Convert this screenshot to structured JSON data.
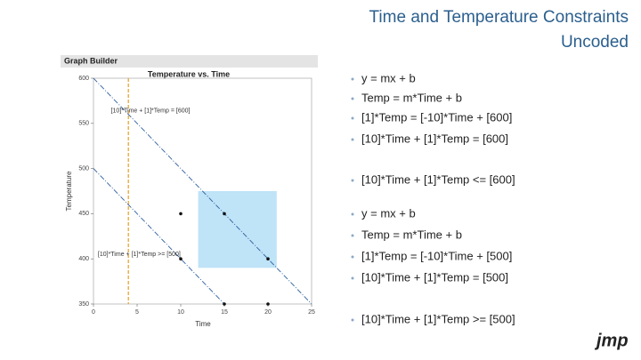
{
  "slide": {
    "title_lines": [
      "Time and Temperature Constraints",
      "Uncoded"
    ],
    "bullets": [
      "y = mx + b",
      "Temp = m*Time + b",
      "[1]*Temp = [-10]*Time + [600]",
      "[10]*Time + [1]*Temp = [600]",
      "[10]*Time + [1]*Temp <= [600]",
      "y = mx + b",
      "Temp = m*Time + b",
      "[1]*Temp = [-10]*Time + [500]",
      "[10]*Time + [1]*Temp = [500]",
      "[10]*Time + [1]*Temp >= [500]"
    ],
    "logo": "jmp"
  },
  "window": {
    "title": "Graph Builder"
  },
  "chart_data": {
    "type": "scatter",
    "title": "Temperature vs. Time",
    "x_label": "Time",
    "y_label": "Temperature",
    "xlim": [
      0,
      25
    ],
    "xticks": [
      0,
      5,
      10,
      15,
      20,
      25
    ],
    "ylim": [
      350,
      600
    ],
    "yticks": [
      350,
      400,
      450,
      500,
      550,
      600
    ],
    "x": [
      10,
      15,
      10,
      20,
      15,
      20
    ],
    "values": [
      450,
      450,
      400,
      400,
      350,
      350
    ],
    "color": "#111111",
    "lines": [
      {
        "x": [
          0,
          25
        ],
        "values": [
          600,
          350
        ],
        "color": "#2e5f9e"
      },
      {
        "x": [
          0,
          15
        ],
        "values": [
          500,
          350
        ],
        "color": "#2e5f9e"
      }
    ],
    "vline": {
      "x": 4,
      "color": "#e8a020"
    },
    "region": {
      "x": [
        12,
        21
      ],
      "y": [
        390,
        475
      ],
      "color": "#bfe3f7"
    },
    "annotations": [
      {
        "text": "[10]*Time + [1]*Temp = [600]",
        "x": 2,
        "y": 564
      },
      {
        "text": "[10]*Time + [1]*Temp >= [500]",
        "x": 0.5,
        "y": 405
      }
    ]
  }
}
